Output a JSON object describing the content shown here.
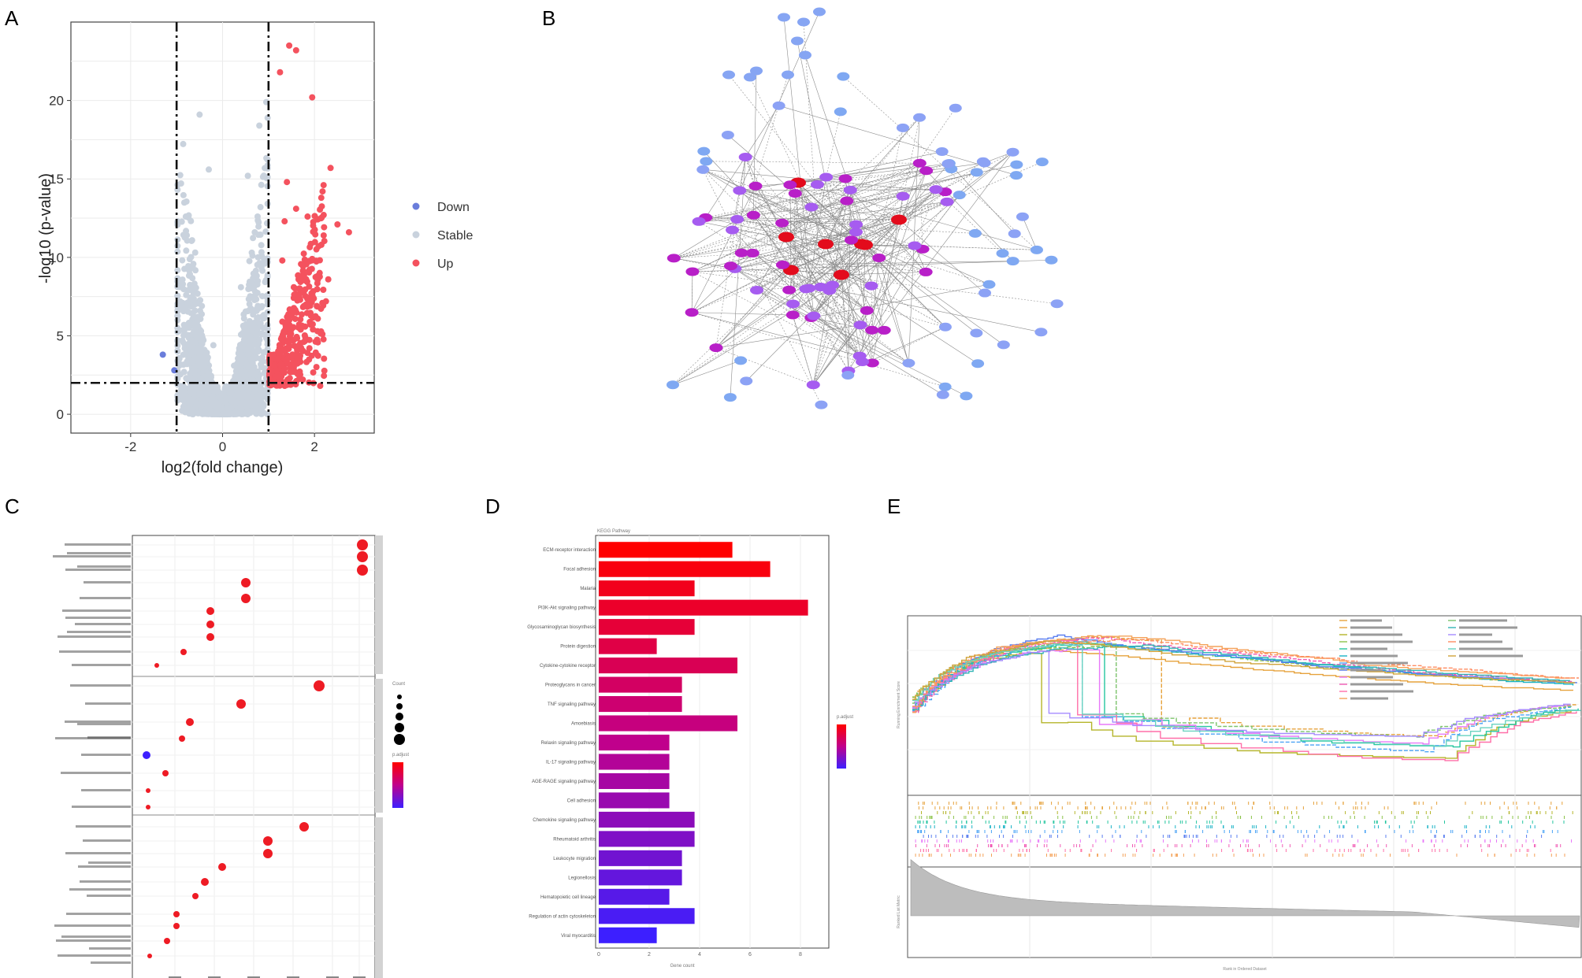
{
  "panels": {
    "a": {
      "label": "A",
      "title": "",
      "xlabel": "log2(fold change)",
      "ylabel": "-log10 (p-value)",
      "x_ticks": [
        "-2",
        "0",
        "2"
      ],
      "y_ticks": [
        "0",
        "5",
        "10",
        "15",
        "20"
      ],
      "legend": [
        {
          "label": "Down",
          "color": "#6a7ddb"
        },
        {
          "label": "Stable",
          "color": "#c9d2dd"
        },
        {
          "label": "Up",
          "color": "#f4525e"
        }
      ]
    },
    "b": {
      "label": "B"
    },
    "c": {
      "label": "C",
      "size_legend_title": "Count",
      "color_legend_title": "p.adjust"
    },
    "d": {
      "label": "D",
      "title": "KEGG Pathway",
      "xlabel": "Gene count",
      "color_legend_title": "p.adjust"
    },
    "e": {
      "label": "E",
      "ylabel_top": "Running Enrichment Score",
      "ylabel_bottom": "Ranked List Metric",
      "xlabel": "Rank in Ordered Dataset"
    }
  },
  "chart_data": [
    {
      "type": "scatter",
      "panel": "A",
      "title": "",
      "xlabel": "log2(fold change)",
      "ylabel": "-log10 (p-value)",
      "xlim": [
        -3.3,
        3.3
      ],
      "ylim": [
        -1.2,
        25
      ],
      "thresholds": {
        "x": [
          -1,
          1
        ],
        "y": 2
      },
      "series": [
        {
          "name": "Down",
          "color": "#6a7ddb",
          "points": [
            [
              -1.3,
              3.8
            ],
            [
              -1.05,
              2.8
            ]
          ]
        },
        {
          "name": "Up",
          "color": "#f4525e",
          "points": [
            [
              1.45,
              23.5
            ],
            [
              1.6,
              23.2
            ],
            [
              1.25,
              21.8
            ],
            [
              1.95,
              20.2
            ],
            [
              2.35,
              15.7
            ],
            [
              2.75,
              11.6
            ],
            [
              2.5,
              12.1
            ],
            [
              2.2,
              12.7
            ],
            [
              2.2,
              11.4
            ],
            [
              2.15,
              10.8
            ],
            [
              2.3,
              8.6
            ],
            [
              2.25,
              7.2
            ],
            [
              2.05,
              6.9
            ],
            [
              1.4,
              14.8
            ],
            [
              1.6,
              13.1
            ],
            [
              1.35,
              12.3
            ],
            [
              1.85,
              12.6
            ],
            [
              1.95,
              9.9
            ],
            [
              1.75,
              9.5
            ],
            [
              1.3,
              9.8
            ],
            [
              1.55,
              8.1
            ],
            [
              1.65,
              7.6
            ],
            [
              1.9,
              7.2
            ],
            [
              1.5,
              6.3
            ],
            [
              1.7,
              5.4
            ],
            [
              1.3,
              5.9
            ],
            [
              1.8,
              4.9
            ],
            [
              1.45,
              4.4
            ],
            [
              1.6,
              3.7
            ],
            [
              1.25,
              3.9
            ],
            [
              1.35,
              2.9
            ],
            [
              1.15,
              2.4
            ],
            [
              1.5,
              2.7
            ]
          ]
        },
        {
          "name": "Stable",
          "color": "#c9d2dd",
          "points": [
            [
              -0.5,
              19.1
            ],
            [
              0.95,
              19.9
            ],
            [
              0.8,
              18.4
            ],
            [
              -0.3,
              15.6
            ],
            [
              0.55,
              15.2
            ],
            [
              -0.8,
              12.6
            ],
            [
              0.7,
              11.6
            ],
            [
              -0.65,
              9.4
            ],
            [
              0.4,
              8.1
            ],
            [
              -0.45,
              6.9
            ],
            [
              0.85,
              6.2
            ],
            [
              -0.95,
              5.3
            ],
            [
              -0.2,
              4.4
            ],
            [
              0.25,
              3.1
            ],
            [
              -0.6,
              2.8
            ],
            [
              0.05,
              1.6
            ],
            [
              -0.15,
              0.8
            ],
            [
              0.1,
              0.4
            ],
            [
              0.45,
              1.1
            ],
            [
              -0.4,
              1.4
            ],
            [
              0.65,
              2.2
            ]
          ]
        }
      ]
    },
    {
      "type": "bar",
      "panel": "D",
      "title": "KEGG Pathway",
      "xlabel": "Gene count",
      "ylabel": "",
      "xlim": [
        0,
        9
      ],
      "x_ticks": [
        "0",
        "2",
        "4",
        "6",
        "8"
      ],
      "categories": [
        "ECM-receptor interaction",
        "Focal adhesion",
        "Malaria",
        "PI3K-Akt signaling pathway",
        "Glycosaminoglycan biosynthesis",
        "Protein digestion",
        "Cytokine-cytokine receptor",
        "Proteoglycans in cancer",
        "TNF signaling pathway",
        "Amoebiasis",
        "Relaxin signaling pathway",
        "IL-17 signaling pathway",
        "AGE-RAGE signaling pathway",
        "Cell adhesion",
        "Chemokine signaling pathway",
        "Rheumatoid arthritis",
        "Leukocyte migration",
        "Legionellosis",
        "Hematopoietic cell lineage",
        "Regulation of actin cytoskeleton",
        "Viral myocarditis"
      ],
      "values": [
        5.3,
        6.8,
        3.8,
        8.3,
        3.8,
        2.3,
        5.5,
        3.3,
        3.3,
        5.5,
        2.8,
        2.8,
        2.8,
        2.8,
        3.8,
        3.8,
        3.3,
        3.3,
        2.8,
        3.8,
        2.3
      ]
    }
  ]
}
